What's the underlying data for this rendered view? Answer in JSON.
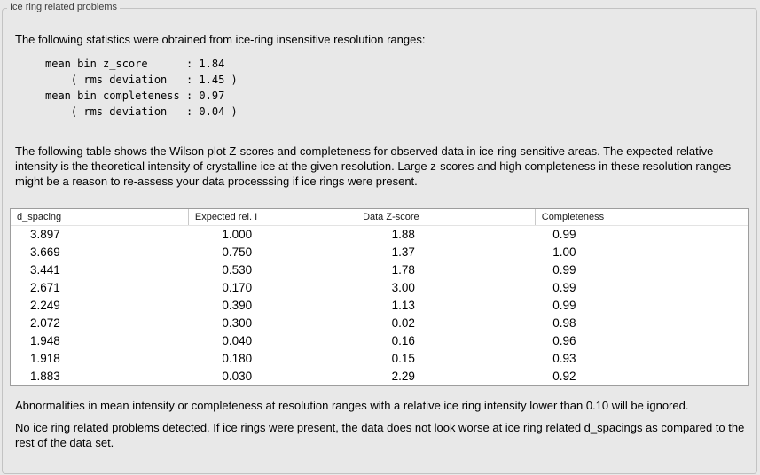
{
  "panel": {
    "title": "Ice ring related problems"
  },
  "stats": {
    "intro": "The following statistics were obtained from ice-ring insensitive resolution ranges:",
    "lines": [
      "mean bin z_score      : 1.84",
      "    ( rms deviation   : 1.45 )",
      "mean bin completeness : 0.97",
      "    ( rms deviation   : 0.04 )"
    ]
  },
  "table_intro": "The following table shows the Wilson plot Z-scores and completeness for observed data in ice-ring sensitive areas. The expected relative intensity is the theoretical intensity of crystalline ice at the given resolution. Large z-scores and high completeness in these resolution ranges might be a reason to re-assess your data processsing if ice rings were present.",
  "table": {
    "headers": [
      "d_spacing",
      "Expected rel. I",
      "Data Z-score",
      "Completeness"
    ],
    "rows": [
      [
        "3.897",
        "1.000",
        "1.88",
        "0.99"
      ],
      [
        "3.669",
        "0.750",
        "1.37",
        "1.00"
      ],
      [
        "3.441",
        "0.530",
        "1.78",
        "0.99"
      ],
      [
        "2.671",
        "0.170",
        "3.00",
        "0.99"
      ],
      [
        "2.249",
        "0.390",
        "1.13",
        "0.99"
      ],
      [
        "2.072",
        "0.300",
        "0.02",
        "0.98"
      ],
      [
        "1.948",
        "0.040",
        "0.16",
        "0.96"
      ],
      [
        "1.918",
        "0.180",
        "0.15",
        "0.93"
      ],
      [
        "1.883",
        "0.030",
        "2.29",
        "0.92"
      ]
    ]
  },
  "notes": {
    "ignore_rule": "Abnormalities in mean intensity or completeness at resolution ranges with a relative ice ring intensity lower than 0.10 will be ignored.",
    "result": "No ice ring related problems detected. If ice rings were present, the data does not look worse at ice ring related d_spacings as compared to the rest of the data set."
  }
}
